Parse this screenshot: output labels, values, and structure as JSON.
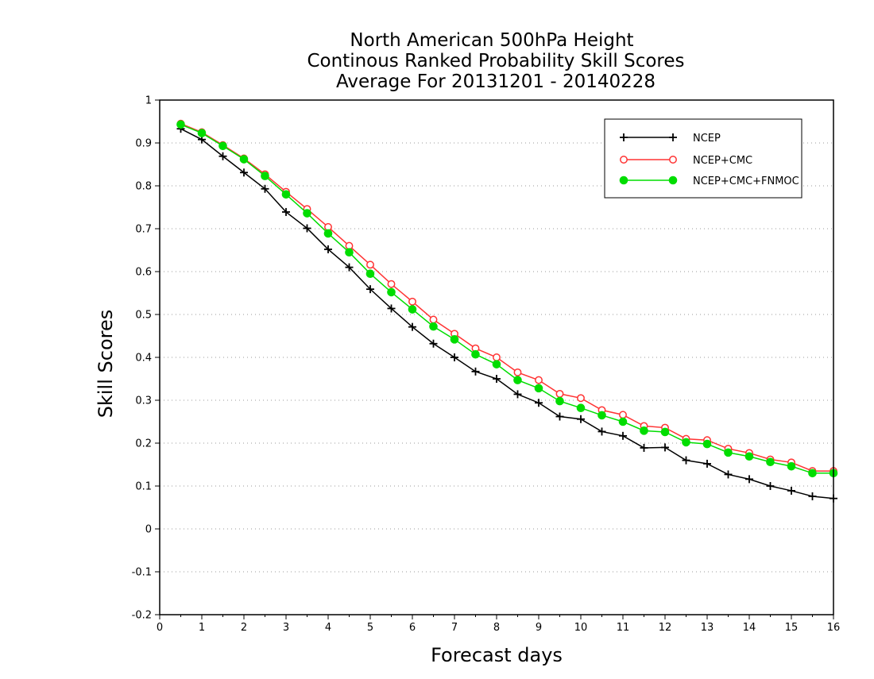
{
  "chart_data": {
    "type": "line",
    "title_lines": [
      "North American 500hPa Height",
      "Continous Ranked Probability Skill Scores",
      "Average For 20131201 - 20140228"
    ],
    "xlabel": "Forecast days",
    "ylabel": "Skill Scores",
    "xlim": [
      0,
      16
    ],
    "ylim": [
      -0.2,
      1
    ],
    "x_ticks": [
      0,
      1,
      2,
      3,
      4,
      5,
      6,
      7,
      8,
      9,
      10,
      11,
      12,
      13,
      14,
      15,
      16
    ],
    "x_tick_labels": [
      "0",
      "1",
      "2",
      "3",
      "4",
      "5",
      "6",
      "7",
      "8",
      "9",
      "10",
      "11",
      "12",
      "13",
      "14",
      "15",
      "16"
    ],
    "y_ticks": [
      -0.2,
      -0.1,
      0,
      0.1,
      0.2,
      0.3,
      0.4,
      0.5,
      0.6,
      0.7,
      0.8,
      0.9,
      1
    ],
    "y_tick_labels": [
      "-0.2",
      "-0.1",
      "0",
      "0.1",
      "0.2",
      "0.3",
      "0.4",
      "0.5",
      "0.6",
      "0.7",
      "0.8",
      "0.9",
      "1"
    ],
    "grid": "horizontal dotted",
    "legend_position": "top-right",
    "x": [
      0.5,
      1,
      1.5,
      2,
      2.5,
      3,
      3.5,
      4,
      4.5,
      5,
      5.5,
      6,
      6.5,
      7,
      7.5,
      8,
      8.5,
      9,
      9.5,
      10,
      10.5,
      11,
      11.5,
      12,
      12.5,
      13,
      13.5,
      14,
      14.5,
      15,
      15.5,
      16
    ],
    "series": [
      {
        "name": "NCEP",
        "color": "#000000",
        "marker": "plus",
        "values": [
          0.933,
          0.908,
          0.869,
          0.831,
          0.793,
          0.739,
          0.701,
          0.652,
          0.61,
          0.559,
          0.514,
          0.471,
          0.432,
          0.4,
          0.367,
          0.35,
          0.314,
          0.294,
          0.262,
          0.256,
          0.227,
          0.217,
          0.189,
          0.19,
          0.16,
          0.152,
          0.127,
          0.116,
          0.1,
          0.089,
          0.076,
          0.071
        ]
      },
      {
        "name": "NCEP+CMC",
        "color": "#ff3333",
        "marker": "open-circle",
        "values": [
          0.945,
          0.925,
          0.895,
          0.864,
          0.827,
          0.786,
          0.746,
          0.704,
          0.66,
          0.616,
          0.571,
          0.53,
          0.488,
          0.455,
          0.421,
          0.4,
          0.365,
          0.347,
          0.315,
          0.305,
          0.277,
          0.266,
          0.24,
          0.236,
          0.21,
          0.207,
          0.187,
          0.177,
          0.162,
          0.155,
          0.135,
          0.135
        ]
      },
      {
        "name": "NCEP+CMC+FNMOC",
        "color": "#00dd00",
        "marker": "filled-circle",
        "values": [
          0.943,
          0.923,
          0.893,
          0.862,
          0.823,
          0.78,
          0.736,
          0.689,
          0.645,
          0.595,
          0.552,
          0.512,
          0.472,
          0.442,
          0.407,
          0.384,
          0.347,
          0.328,
          0.298,
          0.282,
          0.265,
          0.25,
          0.229,
          0.226,
          0.202,
          0.198,
          0.178,
          0.169,
          0.156,
          0.146,
          0.13,
          0.13
        ]
      }
    ]
  }
}
